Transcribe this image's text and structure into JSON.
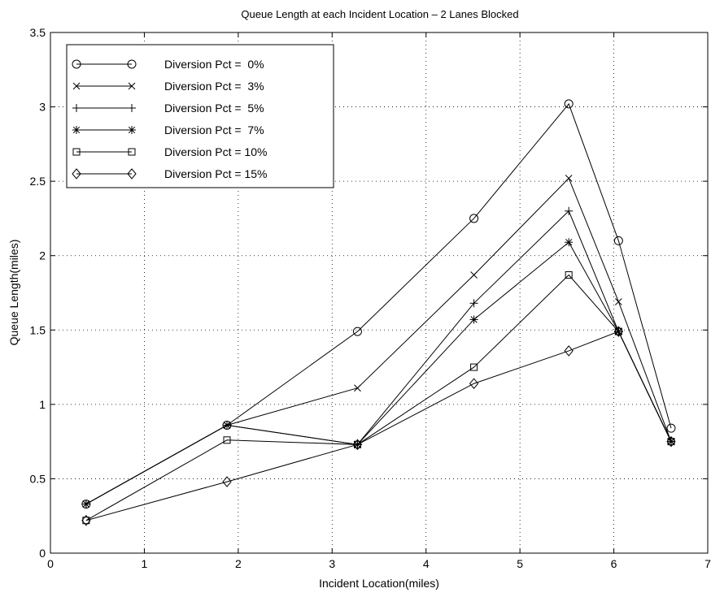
{
  "chart_data": {
    "type": "line",
    "title": "Queue Length at each Incident Location – 2 Lanes Blocked",
    "xlabel": "Incident Location(miles)",
    "ylabel": "Queue Length(miles)",
    "xlim": [
      0,
      7
    ],
    "ylim": [
      0,
      3.5
    ],
    "x_ticks": [
      0,
      1,
      2,
      3,
      4,
      5,
      6,
      7
    ],
    "y_ticks": [
      0,
      0.5,
      1,
      1.5,
      2,
      2.5,
      3,
      3.5
    ],
    "x_tick_labels": [
      "0",
      "1",
      "2",
      "3",
      "4",
      "5",
      "6",
      "7"
    ],
    "y_tick_labels": [
      "0",
      "0.5",
      "1",
      "1.5",
      "2",
      "2.5",
      "3",
      "3.5"
    ],
    "grid": true,
    "legend_position": "top-left",
    "x": [
      0.38,
      1.88,
      3.27,
      4.51,
      5.52,
      6.05,
      6.61
    ],
    "series": [
      {
        "name": "Diversion Pct =  0%",
        "marker": "circle",
        "values": [
          0.33,
          0.86,
          1.49,
          2.25,
          3.02,
          2.1,
          0.84
        ]
      },
      {
        "name": "Diversion Pct =  3%",
        "marker": "x",
        "values": [
          0.33,
          0.86,
          1.11,
          1.87,
          2.52,
          1.69,
          0.75
        ]
      },
      {
        "name": "Diversion Pct =  5%",
        "marker": "plus",
        "values": [
          0.33,
          0.86,
          0.73,
          1.68,
          2.3,
          1.49,
          0.75
        ]
      },
      {
        "name": "Diversion Pct =  7%",
        "marker": "star",
        "values": [
          0.33,
          0.86,
          0.73,
          1.57,
          2.09,
          1.49,
          0.75
        ]
      },
      {
        "name": "Diversion Pct = 10%",
        "marker": "square",
        "values": [
          0.22,
          0.76,
          0.73,
          1.25,
          1.87,
          1.49,
          0.75
        ]
      },
      {
        "name": "Diversion Pct = 15%",
        "marker": "diamond",
        "values": [
          0.22,
          0.48,
          0.73,
          1.14,
          1.36,
          1.49,
          0.75
        ]
      }
    ]
  }
}
